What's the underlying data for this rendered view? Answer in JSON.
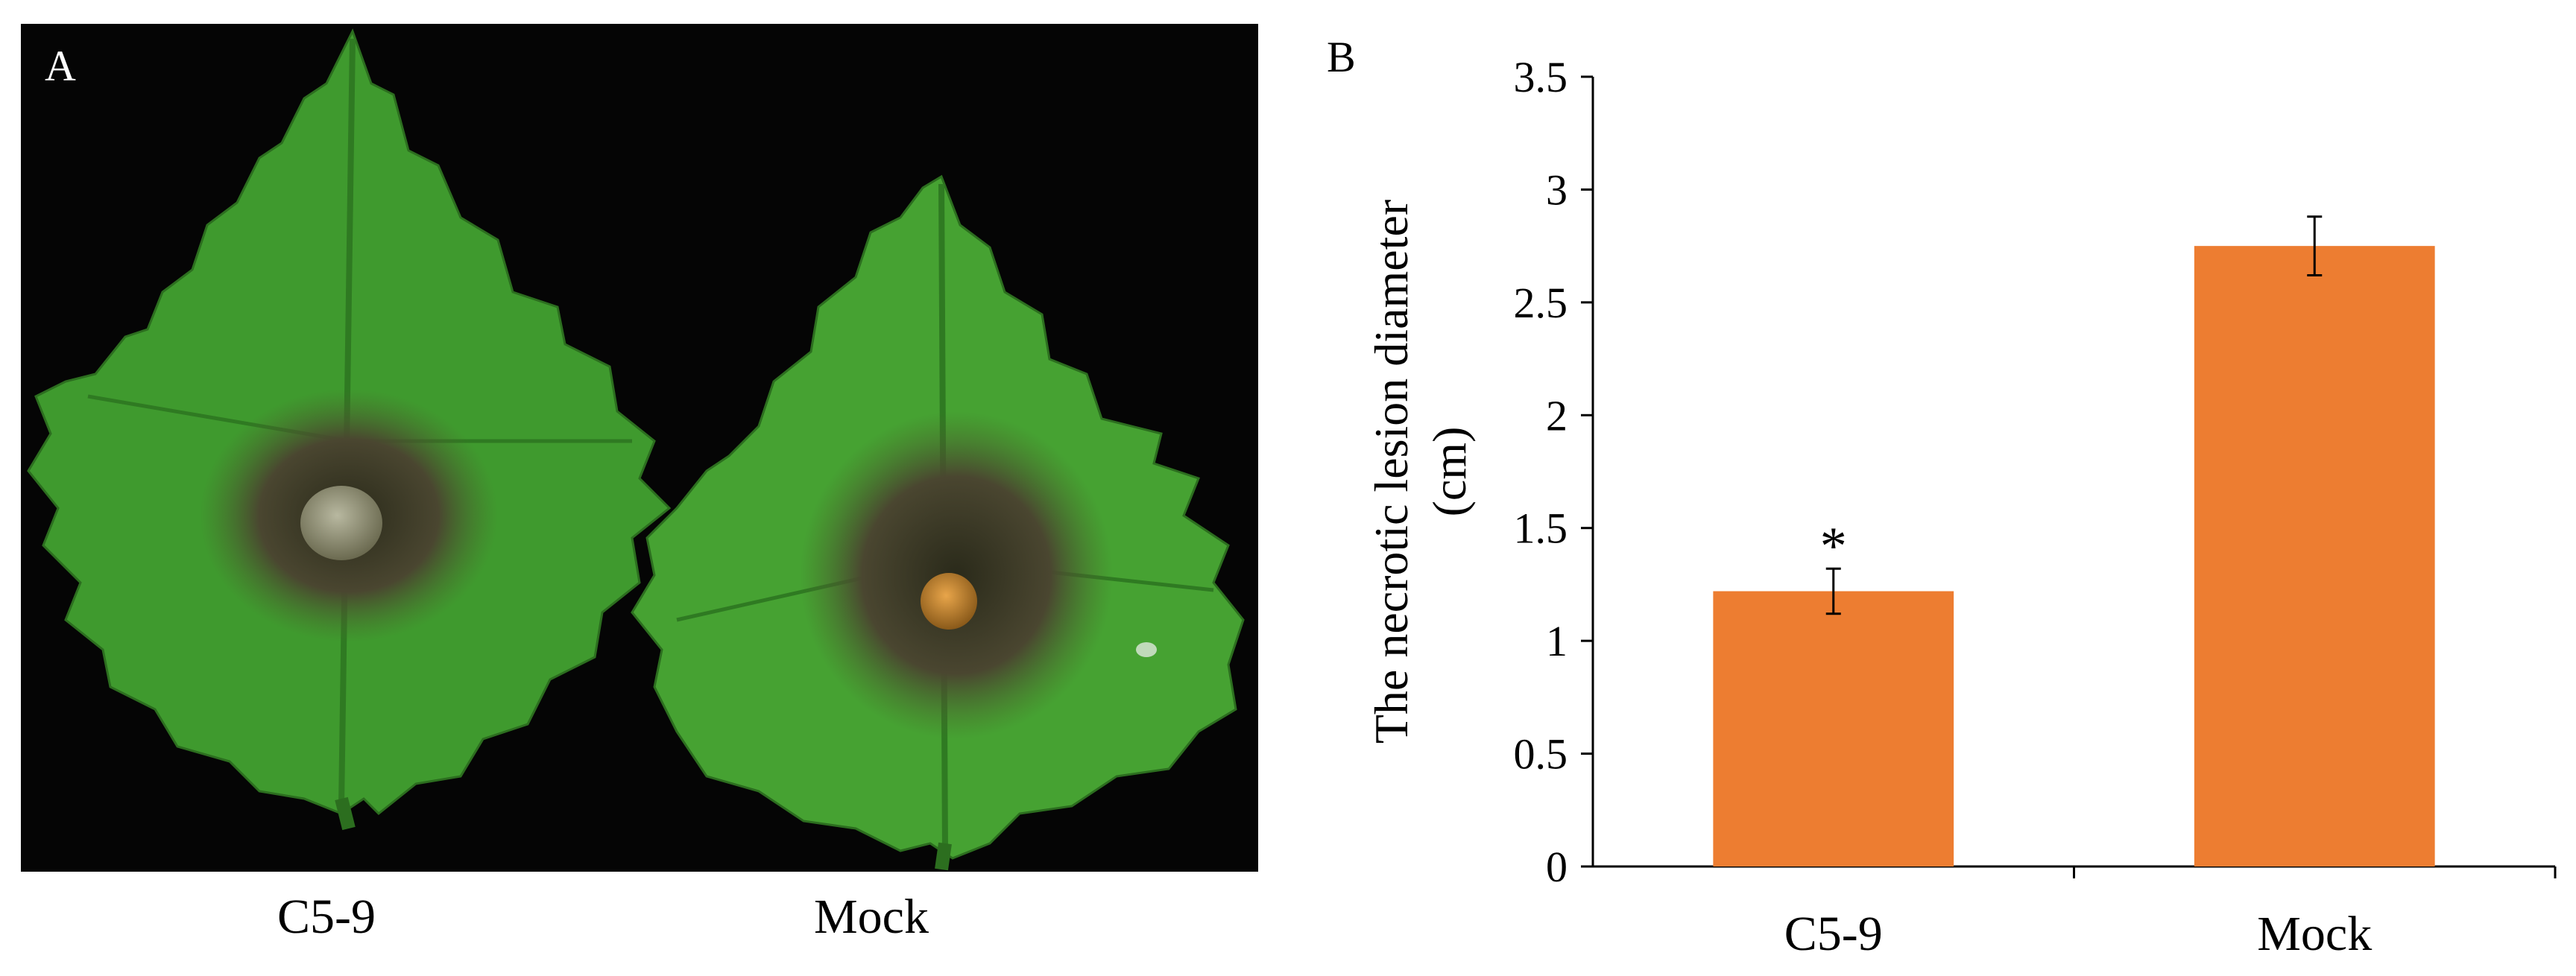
{
  "panel_a": {
    "letter": "A",
    "captions": [
      "C5-9",
      "Mock"
    ]
  },
  "panel_b": {
    "letter": "B"
  },
  "colors": {
    "bar": "#ED7D31",
    "photo_background": "#050505",
    "leaf": "#3f9a2e",
    "lesion": "#3a3a24"
  },
  "chart_data": {
    "type": "bar",
    "categories": [
      "C5-9",
      "Mock"
    ],
    "values": [
      1.22,
      2.75
    ],
    "errors": [
      0.1,
      0.13
    ],
    "annotations": [
      "*",
      ""
    ],
    "ylabel_line1": "The necrotic lesion diameter",
    "ylabel_line2": "(cm)",
    "ylim": [
      0,
      3.5
    ],
    "yticks": [
      "0",
      "0.5",
      "1",
      "1.5",
      "2",
      "2.5",
      "3",
      "3.5"
    ],
    "grid": false,
    "legend": "none"
  }
}
